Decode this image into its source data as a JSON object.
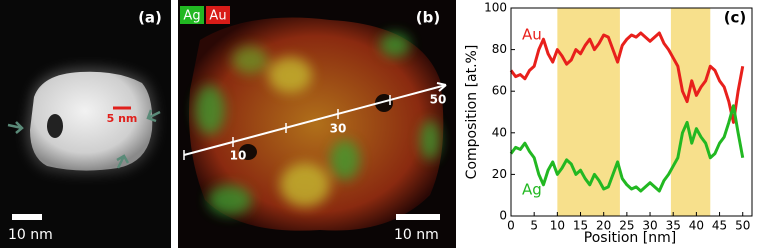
{
  "panel_a": {
    "label": "(a)",
    "annotation": "5 nm",
    "scale_bar": "10 nm"
  },
  "panel_b": {
    "label": "(b)",
    "channels": [
      "Ag",
      "Au"
    ],
    "line_labels": [
      "10",
      "30",
      "50"
    ],
    "scale_bar": "10 nm"
  },
  "chart_data": {
    "type": "line",
    "label": "(c)",
    "x_label": "Position [nm]",
    "y_label": "Composition [at.%]",
    "x": [
      0,
      1,
      2,
      3,
      4,
      5,
      6,
      7,
      8,
      9,
      10,
      11,
      12,
      13,
      14,
      15,
      16,
      17,
      18,
      19,
      20,
      21,
      22,
      23,
      24,
      25,
      26,
      27,
      28,
      29,
      30,
      31,
      32,
      33,
      34,
      35,
      36,
      37,
      38,
      39,
      40,
      41,
      42,
      43,
      44,
      45,
      46,
      47,
      48,
      49,
      50
    ],
    "series": [
      {
        "name": "Au",
        "color": "#e8201c",
        "values": [
          70,
          67,
          68,
          66,
          70,
          72,
          80,
          85,
          78,
          74,
          80,
          77,
          73,
          75,
          80,
          78,
          82,
          85,
          80,
          83,
          87,
          86,
          80,
          74,
          82,
          85,
          87,
          86,
          88,
          86,
          84,
          86,
          88,
          83,
          80,
          76,
          72,
          60,
          55,
          65,
          58,
          62,
          65,
          72,
          70,
          65,
          62,
          55,
          45,
          60,
          72
        ]
      },
      {
        "name": "Ag",
        "color": "#22b822",
        "values": [
          30,
          33,
          32,
          35,
          31,
          28,
          20,
          15,
          22,
          26,
          20,
          23,
          27,
          25,
          20,
          22,
          18,
          15,
          20,
          17,
          13,
          14,
          20,
          26,
          18,
          15,
          13,
          14,
          12,
          14,
          16,
          14,
          12,
          17,
          20,
          24,
          28,
          40,
          45,
          35,
          42,
          38,
          35,
          28,
          30,
          35,
          38,
          45,
          53,
          40,
          28
        ]
      }
    ],
    "shaded_regions": [
      [
        10,
        23.5
      ],
      [
        34.5,
        43
      ]
    ],
    "shade_color": "#f7e08c",
    "xlim": [
      0,
      52
    ],
    "ylim": [
      0,
      100
    ],
    "xticks": [
      0,
      5,
      10,
      15,
      20,
      25,
      30,
      35,
      40,
      45,
      50
    ],
    "yticks": [
      0,
      20,
      40,
      60,
      80,
      100
    ]
  }
}
